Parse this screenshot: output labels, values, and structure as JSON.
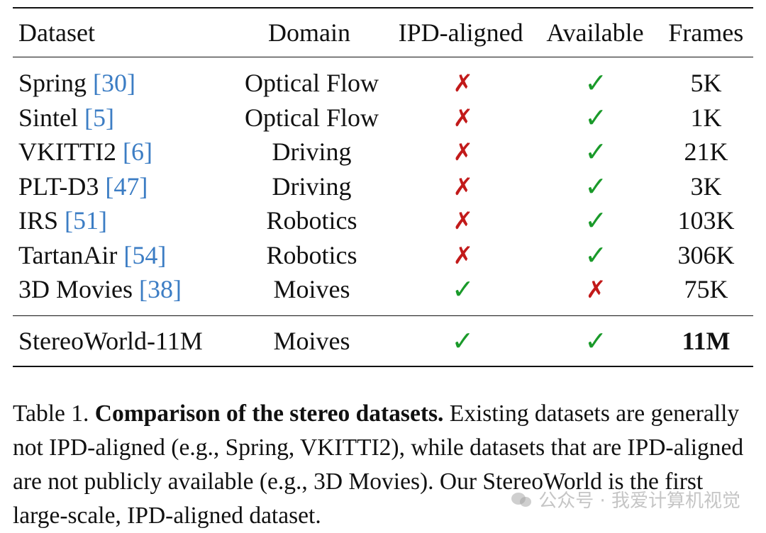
{
  "table": {
    "headers": {
      "dataset": "Dataset",
      "domain": "Domain",
      "ipd": "IPD-aligned",
      "available": "Available",
      "frames": "Frames"
    },
    "rows": [
      {
        "name": "Spring",
        "ref": "[30]",
        "domain": "Optical Flow",
        "ipd": "✗",
        "available": "✓",
        "frames": "5K"
      },
      {
        "name": "Sintel",
        "ref": "[5]",
        "domain": "Optical Flow",
        "ipd": "✗",
        "available": "✓",
        "frames": "1K"
      },
      {
        "name": "VKITTI2",
        "ref": "[6]",
        "domain": "Driving",
        "ipd": "✗",
        "available": "✓",
        "frames": "21K"
      },
      {
        "name": "PLT-D3",
        "ref": "[47]",
        "domain": "Driving",
        "ipd": "✗",
        "available": "✓",
        "frames": "3K"
      },
      {
        "name": "IRS",
        "ref": "[51]",
        "domain": "Robotics",
        "ipd": "✗",
        "available": "✓",
        "frames": "103K"
      },
      {
        "name": "TartanAir",
        "ref": "[54]",
        "domain": "Robotics",
        "ipd": "✗",
        "available": "✓",
        "frames": "306K"
      },
      {
        "name": "3D Movies",
        "ref": "[38]",
        "domain": "Moives",
        "ipd": "✓",
        "available": "✗",
        "frames": "75K"
      }
    ],
    "final_row": {
      "name": "StereoWorld-11M",
      "domain": "Moives",
      "ipd": "✓",
      "available": "✓",
      "frames": "11M"
    }
  },
  "caption": {
    "prefix": "Table 1. ",
    "bold": "Comparison of the stereo datasets.",
    "text": " Existing datasets are generally not IPD-aligned (e.g., Spring, VKITTI2), while datasets that are IPD-aligned are not publicly available (e.g., 3D Movies). Our StereoWorld is the first large-scale, IPD-aligned dataset."
  },
  "watermark": {
    "text": "公众号 · 我爱计算机视觉"
  },
  "colors": {
    "check": "#1a9a2a",
    "cross": "#c21a1a",
    "ref_link": "#3c7dc4"
  }
}
